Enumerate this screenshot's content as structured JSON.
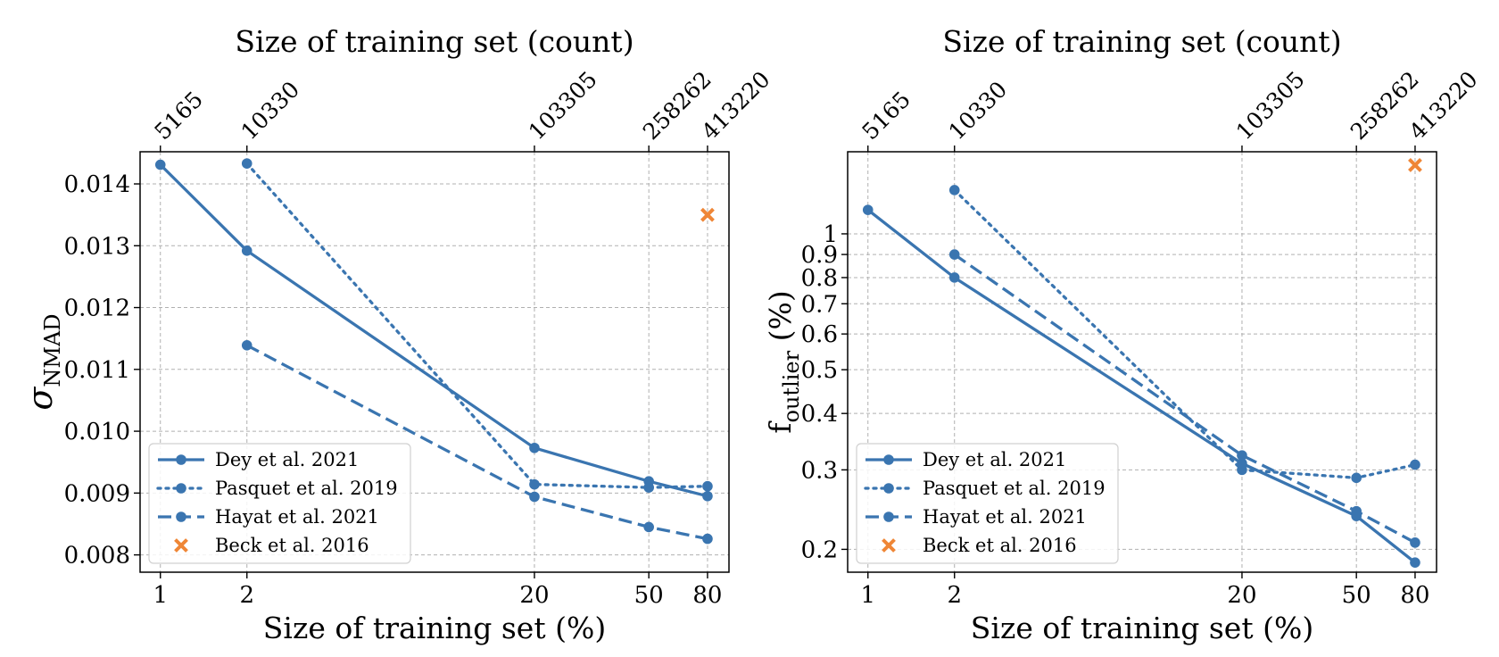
{
  "chart_data": [
    {
      "type": "line",
      "x_scale": "log",
      "y_scale": "linear",
      "xlabel": "Size of training set (%)",
      "ylabel": "σNMAD",
      "ylabel_main": "σ",
      "ylabel_sub": "NMAD",
      "top_xlabel": "Size of training set (count)",
      "xlim": [
        0.85,
        95
      ],
      "ylim": [
        0.00772,
        0.01452
      ],
      "grid": true,
      "legend_position": "lower-left",
      "x_ticks": [
        {
          "value": 1,
          "label": "1"
        },
        {
          "value": 2,
          "label": "2"
        },
        {
          "value": 20,
          "label": "20"
        },
        {
          "value": 50,
          "label": "50"
        },
        {
          "value": 80,
          "label": "80"
        }
      ],
      "top_ticks": [
        {
          "value": 1,
          "label": "5165"
        },
        {
          "value": 2,
          "label": "10330"
        },
        {
          "value": 20,
          "label": "103305"
        },
        {
          "value": 50,
          "label": "258262"
        },
        {
          "value": 80,
          "label": "413220"
        }
      ],
      "y_ticks": [
        {
          "value": 0.008,
          "label": "0.008"
        },
        {
          "value": 0.009,
          "label": "0.009"
        },
        {
          "value": 0.01,
          "label": "0.010"
        },
        {
          "value": 0.011,
          "label": "0.011"
        },
        {
          "value": 0.012,
          "label": "0.012"
        },
        {
          "value": 0.013,
          "label": "0.013"
        },
        {
          "value": 0.014,
          "label": "0.014"
        }
      ],
      "series": [
        {
          "name": "Dey et al. 2021",
          "style": "solid",
          "marker": "circle",
          "color": "#3a75b0",
          "x": [
            1,
            2,
            20,
            50,
            80
          ],
          "y": [
            0.01431,
            0.01292,
            0.00973,
            0.00919,
            0.00895
          ]
        },
        {
          "name": "Pasquet et al. 2019",
          "style": "dotted",
          "marker": "circle",
          "color": "#3a75b0",
          "x": [
            2,
            20,
            50,
            80
          ],
          "y": [
            0.01433,
            0.00914,
            0.00909,
            0.00911
          ]
        },
        {
          "name": "Hayat et al. 2021",
          "style": "dashed",
          "marker": "circle",
          "color": "#3a75b0",
          "x": [
            2,
            20,
            50,
            80
          ],
          "y": [
            0.01139,
            0.00894,
            0.00845,
            0.00826
          ]
        },
        {
          "name": "Beck et al. 2016",
          "style": "none",
          "marker": "x",
          "color": "#ef8636",
          "x": [
            80
          ],
          "y": [
            0.0135
          ]
        }
      ]
    },
    {
      "type": "line",
      "x_scale": "log",
      "y_scale": "log",
      "xlabel": "Size of training set (%)",
      "ylabel": "foutlier (%)",
      "ylabel_main": "f",
      "ylabel_sub": "outlier",
      "ylabel_suffix": " (%)",
      "top_xlabel": "Size of training set (count)",
      "xlim": [
        0.85,
        95
      ],
      "ylim": [
        0.178,
        1.52
      ],
      "grid": true,
      "legend_position": "lower-left",
      "x_ticks": [
        {
          "value": 1,
          "label": "1"
        },
        {
          "value": 2,
          "label": "2"
        },
        {
          "value": 20,
          "label": "20"
        },
        {
          "value": 50,
          "label": "50"
        },
        {
          "value": 80,
          "label": "80"
        }
      ],
      "top_ticks": [
        {
          "value": 1,
          "label": "5165"
        },
        {
          "value": 2,
          "label": "10330"
        },
        {
          "value": 20,
          "label": "103305"
        },
        {
          "value": 50,
          "label": "258262"
        },
        {
          "value": 80,
          "label": "413220"
        }
      ],
      "y_ticks": [
        {
          "value": 0.2,
          "label": "0.2"
        },
        {
          "value": 0.3,
          "label": "0.3"
        },
        {
          "value": 0.4,
          "label": "0.4"
        },
        {
          "value": 0.5,
          "label": "0.5"
        },
        {
          "value": 0.6,
          "label": "0.6"
        },
        {
          "value": 0.7,
          "label": "0.7"
        },
        {
          "value": 0.8,
          "label": "0.8"
        },
        {
          "value": 0.9,
          "label": "0.9"
        },
        {
          "value": 1,
          "label": "1"
        }
      ],
      "series": [
        {
          "name": "Dey et al. 2021",
          "style": "solid",
          "marker": "circle",
          "color": "#3a75b0",
          "x": [
            1,
            2,
            20,
            50,
            80
          ],
          "y": [
            1.13,
            0.8,
            0.31,
            0.237,
            0.187
          ]
        },
        {
          "name": "Pasquet et al. 2019",
          "style": "dotted",
          "marker": "circle",
          "color": "#3a75b0",
          "x": [
            2,
            20,
            50,
            80
          ],
          "y": [
            1.25,
            0.3,
            0.288,
            0.308
          ]
        },
        {
          "name": "Hayat et al. 2021",
          "style": "dashed",
          "marker": "circle",
          "color": "#3a75b0",
          "x": [
            2,
            20,
            50,
            80
          ],
          "y": [
            0.9,
            0.323,
            0.243,
            0.207
          ]
        },
        {
          "name": "Beck et al. 2016",
          "style": "none",
          "marker": "x",
          "color": "#ef8636",
          "x": [
            80
          ],
          "y": [
            1.42
          ]
        }
      ]
    }
  ]
}
